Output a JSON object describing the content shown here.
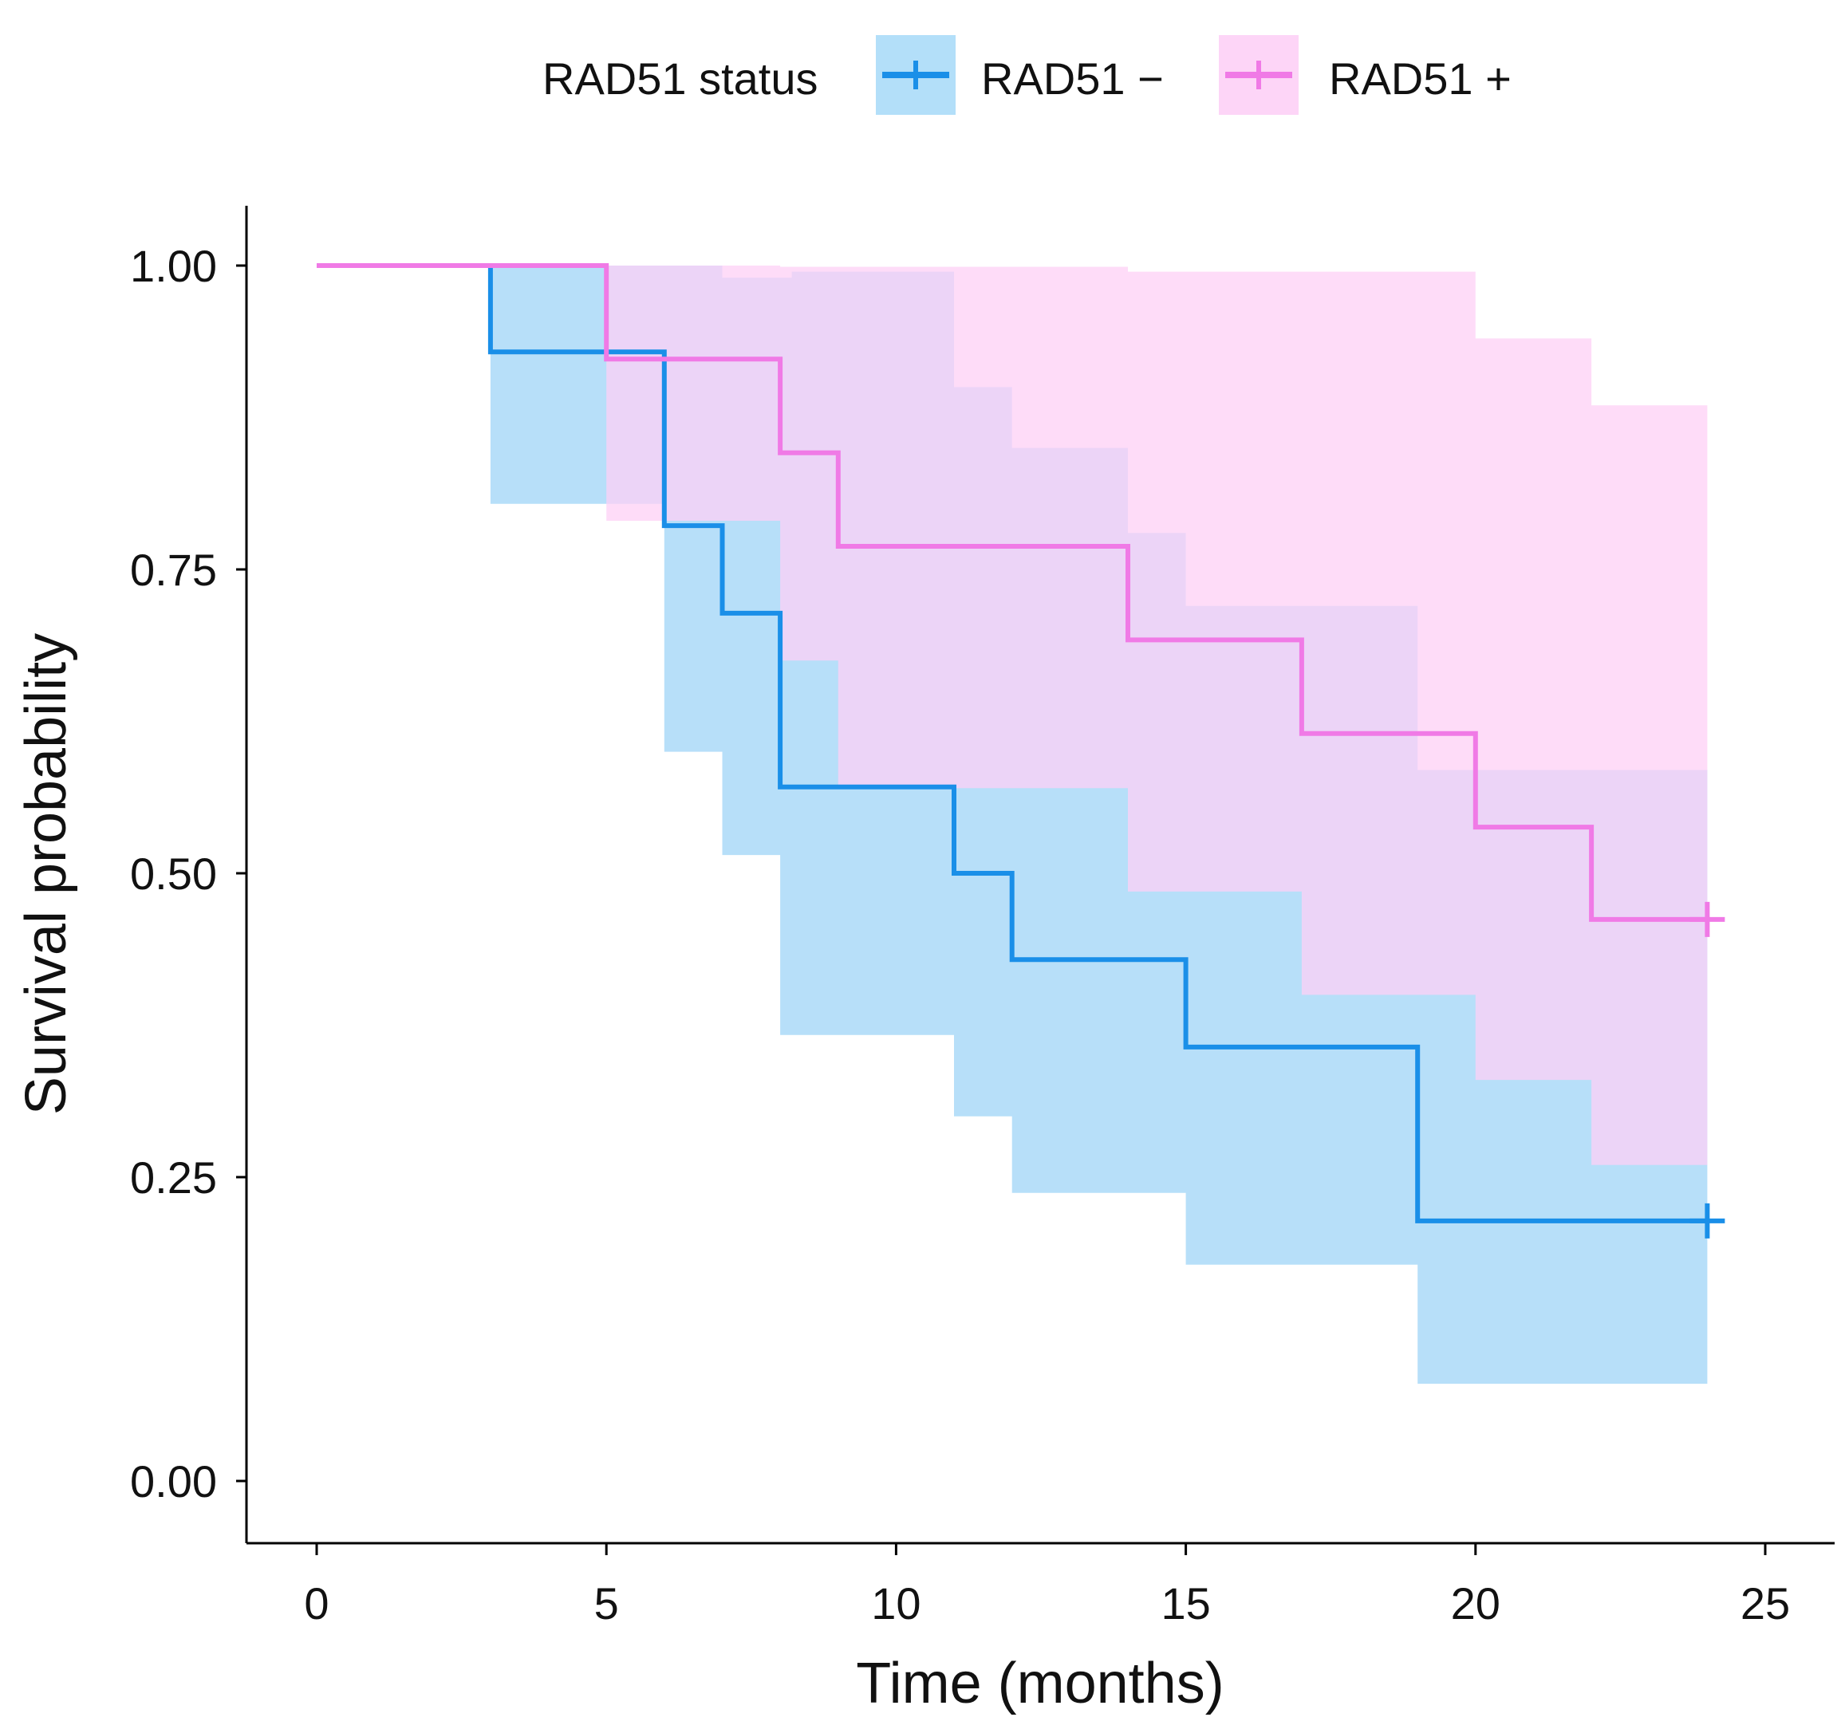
{
  "chart_data": {
    "type": "line",
    "subtype": "kaplan-meier",
    "title": "",
    "xlabel": "Time (months)",
    "ylabel": "Survival probability",
    "xlim": [
      -1.2,
      26.2
    ],
    "ylim": [
      -0.05,
      1.05
    ],
    "xticks": [
      0,
      5,
      10,
      15,
      20,
      25
    ],
    "xtick_labels": [
      "0",
      "5",
      "10",
      "15",
      "20",
      "25"
    ],
    "yticks": [
      0,
      0.25,
      0.5,
      0.75,
      1.0
    ],
    "ytick_labels": [
      "0.00",
      "0.25",
      "0.50",
      "0.75",
      "1.00"
    ],
    "grid": false,
    "legend": {
      "title": "RAD51 status",
      "position": "top",
      "entries": [
        "RAD51 −",
        "RAD51 +"
      ]
    },
    "series": [
      {
        "name": "RAD51 −",
        "color": "#1a8fe8",
        "band_color": "#9fd4f7",
        "steps": [
          [
            0,
            1.0
          ],
          [
            3,
            0.929
          ],
          [
            6,
            0.786
          ],
          [
            7,
            0.714
          ],
          [
            8,
            0.571
          ],
          [
            11,
            0.5
          ],
          [
            12,
            0.429
          ],
          [
            15,
            0.357
          ],
          [
            19,
            0.214
          ],
          [
            24,
            0.214
          ]
        ],
        "ci": [
          [
            0,
            1.0,
            1.0
          ],
          [
            3,
            0.804,
            1.0
          ],
          [
            5,
            0.804,
            1.0
          ],
          [
            6,
            0.6,
            1.0
          ],
          [
            7,
            0.515,
            0.99
          ],
          [
            8,
            0.367,
            0.99
          ],
          [
            8.2,
            0.367,
            0.995
          ],
          [
            9,
            0.367,
            0.995
          ],
          [
            11,
            0.3,
            0.9
          ],
          [
            12,
            0.237,
            0.85
          ],
          [
            14,
            0.237,
            0.78
          ],
          [
            15,
            0.178,
            0.72
          ],
          [
            19,
            0.08,
            0.585
          ],
          [
            24,
            0.08,
            0.585
          ]
        ],
        "censor": [
          [
            24,
            0.214
          ]
        ]
      },
      {
        "name": "RAD51 +",
        "color": "#f07ae6",
        "band_color": "#fdd0f6",
        "steps": [
          [
            0,
            1.0
          ],
          [
            5,
            0.923
          ],
          [
            8,
            0.846
          ],
          [
            9,
            0.769
          ],
          [
            14,
            0.692
          ],
          [
            17,
            0.615
          ],
          [
            20,
            0.538
          ],
          [
            22,
            0.462
          ],
          [
            24,
            0.462
          ]
        ],
        "ci": [
          [
            0,
            1.0,
            1.0
          ],
          [
            5,
            0.79,
            1.0
          ],
          [
            8,
            0.675,
            0.999
          ],
          [
            9,
            0.57,
            0.999
          ],
          [
            14,
            0.485,
            0.995
          ],
          [
            17,
            0.4,
            0.995
          ],
          [
            20,
            0.33,
            0.94
          ],
          [
            22,
            0.26,
            0.885
          ],
          [
            24,
            0.26,
            0.83
          ]
        ],
        "censor": [
          [
            24,
            0.462
          ]
        ]
      }
    ]
  }
}
